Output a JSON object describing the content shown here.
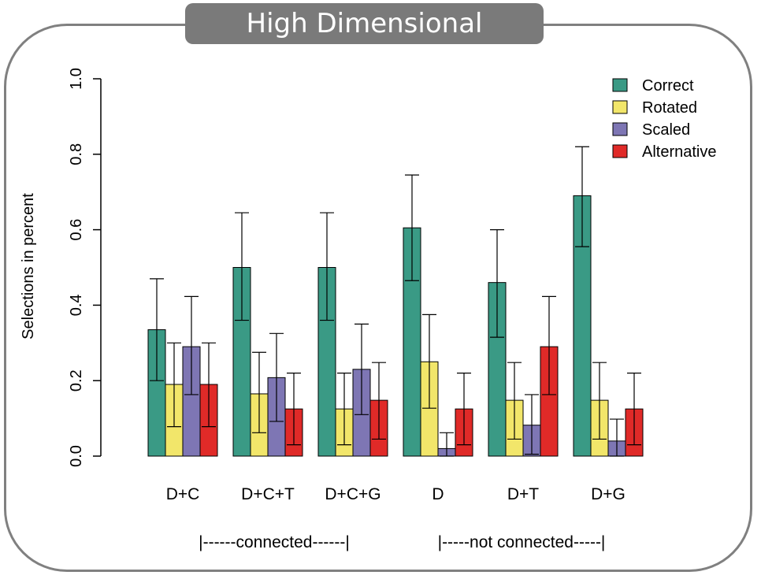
{
  "title": "High Dimensional",
  "chart_data": {
    "type": "bar",
    "title": "High Dimensional",
    "xlabel": "",
    "ylabel": "Selections in percent",
    "ylim": [
      0,
      1
    ],
    "yticks": [
      "0.0",
      "0.2",
      "0.4",
      "0.6",
      "0.8",
      "1.0"
    ],
    "categories": [
      "D+C",
      "D+C+T",
      "D+C+G",
      "D",
      "D+T",
      "D+G"
    ],
    "series": [
      {
        "name": "Correct",
        "color": "#3a9a85",
        "values": [
          0.335,
          0.5,
          0.5,
          0.605,
          0.46,
          0.69
        ],
        "err_low": [
          0.2,
          0.36,
          0.36,
          0.465,
          0.315,
          0.555
        ],
        "err_high": [
          0.47,
          0.645,
          0.645,
          0.745,
          0.6,
          0.82
        ]
      },
      {
        "name": "Rotated",
        "color": "#f2e66a",
        "values": [
          0.19,
          0.165,
          0.125,
          0.25,
          0.148,
          0.148
        ],
        "err_low": [
          0.078,
          0.062,
          0.03,
          0.127,
          0.045,
          0.045
        ],
        "err_high": [
          0.3,
          0.275,
          0.22,
          0.375,
          0.248,
          0.248
        ]
      },
      {
        "name": "Scaled",
        "color": "#7e76b4",
        "values": [
          0.29,
          0.208,
          0.23,
          0.02,
          0.082,
          0.04
        ],
        "err_low": [
          0.163,
          0.092,
          0.11,
          0.0,
          0.005,
          0.0
        ],
        "err_high": [
          0.423,
          0.325,
          0.35,
          0.062,
          0.163,
          0.098
        ]
      },
      {
        "name": "Alternative",
        "color": "#e02a28",
        "values": [
          0.19,
          0.125,
          0.148,
          0.125,
          0.29,
          0.125
        ],
        "err_low": [
          0.078,
          0.03,
          0.045,
          0.03,
          0.163,
          0.03
        ],
        "err_high": [
          0.3,
          0.22,
          0.248,
          0.22,
          0.423,
          0.22
        ]
      }
    ],
    "legend_position": "top-right",
    "grid": false,
    "group_annotations": [
      {
        "label": "|------connected------|"
      },
      {
        "label": "|-----not connected-----|"
      }
    ]
  }
}
